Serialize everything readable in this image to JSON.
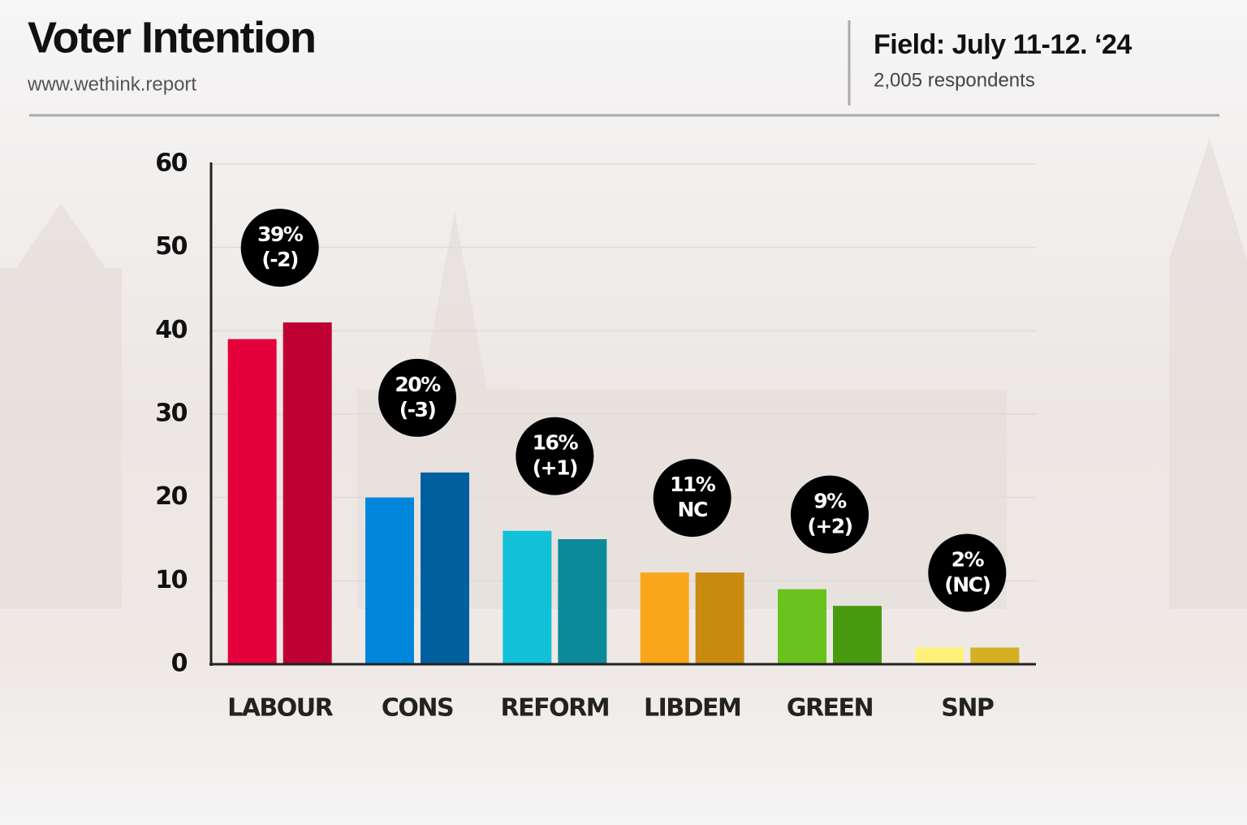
{
  "chart_data": {
    "type": "bar",
    "title": "Voter Intention",
    "subtitle": "www.wethink.report",
    "field": "Field: July 11-12. ‘24",
    "respondents": "2,005 respondents",
    "categories": [
      "LABOUR",
      "CONS",
      "REFORM",
      "LIBDEM",
      "GREEN",
      "SNP"
    ],
    "series": [
      {
        "colors": [
          "#e4003b",
          "#0087dc",
          "#12c1d7",
          "#faa61a",
          "#6ac21f",
          "#fff27a"
        ],
        "values": [
          39,
          20,
          16,
          11,
          9,
          2
        ],
        "value_labels": [
          "39%",
          "20%",
          "16%",
          "11%",
          "9%",
          "2%"
        ]
      },
      {
        "colors": [
          "#be0032",
          "#00609e",
          "#0d8a9a",
          "#c98a10",
          "#4a9a10",
          "#d4b025"
        ],
        "values": [
          41,
          23,
          15,
          11,
          7,
          2
        ]
      }
    ],
    "changes": [
      "(-2)",
      "(-3)",
      "(+1)",
      "NC",
      "(+2)",
      "(NC)"
    ],
    "ylim": [
      0,
      60
    ],
    "yticks": [
      0,
      10,
      20,
      30,
      40,
      50,
      60
    ],
    "grid": true
  }
}
